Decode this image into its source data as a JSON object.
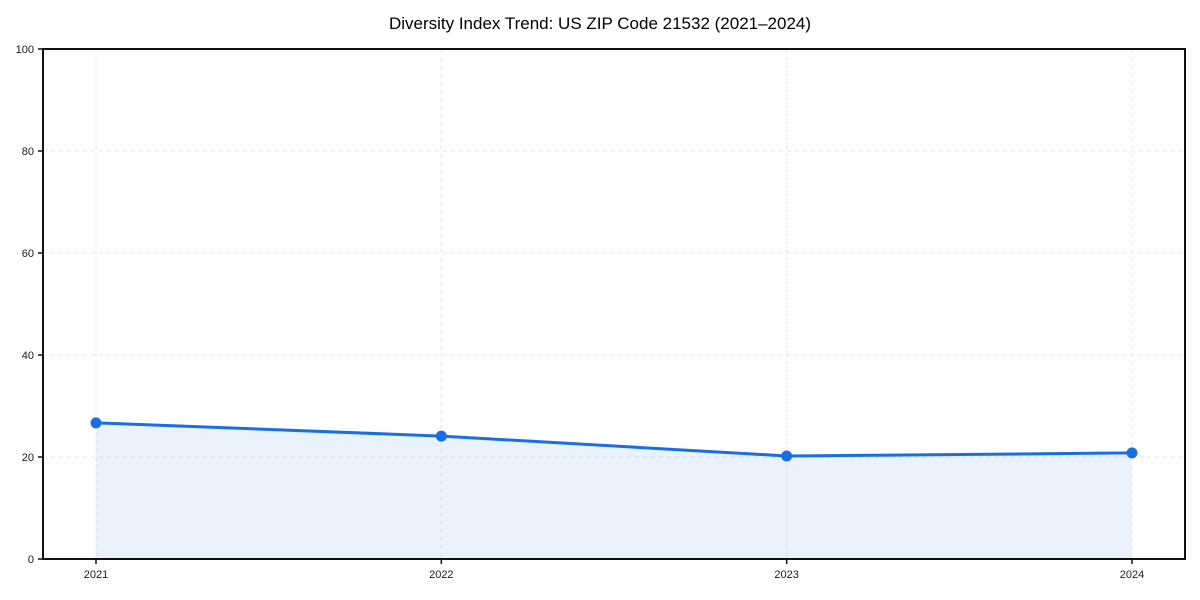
{
  "chart_data": {
    "type": "line",
    "title": "Diversity Index Trend: US ZIP Code 21532 (2021–2024)",
    "categories": [
      "2021",
      "2022",
      "2023",
      "2024"
    ],
    "series": [
      {
        "name": "Diversity Index",
        "values": [
          26.7,
          24.1,
          20.2,
          20.8
        ]
      }
    ],
    "xlabel": "",
    "ylabel": "",
    "ylim": [
      0,
      100
    ],
    "y_ticks": [
      0,
      20,
      40,
      60,
      80,
      100
    ],
    "grid": true,
    "grid_style": "dashed",
    "legend_position": "none",
    "marker": "circle",
    "area_fill": true,
    "colors": {
      "line": "#1a6ee5",
      "marker": "#1a6ee5",
      "area_fill": "rgba(26,110,229,0.09)",
      "grid": "#e4e4e4",
      "spine": "#111111",
      "tick_text": "#1a1a1a",
      "title_text": "#000000",
      "background": "#ffffff"
    }
  }
}
